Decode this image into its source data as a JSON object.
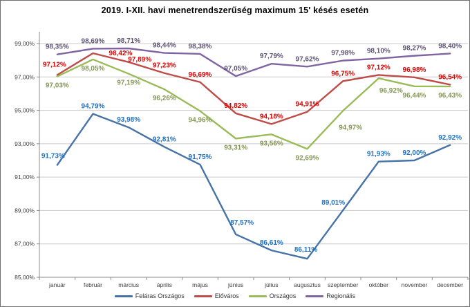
{
  "chart_data": {
    "type": "line",
    "title": "2019. I-XII. havi menetrendszerűség  maximum 15' késés esetén",
    "categories": [
      "január",
      "február",
      "március",
      "április",
      "május",
      "június",
      "július",
      "augusztus",
      "szeptember",
      "október",
      "november",
      "december"
    ],
    "series": [
      {
        "name": "Feláras Országos",
        "color": "#4572A7",
        "label_color": "#1F6FC0",
        "values": [
          91.73,
          94.79,
          93.98,
          92.81,
          91.75,
          87.57,
          86.61,
          86.11,
          89.01,
          91.93,
          92.0,
          92.92
        ],
        "label_dy": -8,
        "label_overrides": {
          "0": [
            -6,
            -10
          ],
          "5": [
            9,
            -14
          ],
          "7": [
            -2,
            -10
          ],
          "8": [
            -14,
            -8
          ]
        }
      },
      {
        "name": "Előváros",
        "color": "#BE4B48",
        "label_color": "#E00000",
        "values": [
          97.12,
          98.42,
          97.89,
          97.23,
          96.69,
          94.82,
          94.18,
          94.91,
          96.75,
          97.12,
          96.98,
          96.54
        ],
        "label_dy": -8,
        "label_overrides": {
          "0": [
            -4,
            -12
          ],
          "1": [
            40,
            3
          ],
          "2": [
            16,
            -1
          ]
        }
      },
      {
        "name": "Országos",
        "color": "#9BBB59",
        "label_color": "#839655",
        "values": [
          97.03,
          98.05,
          97.19,
          96.26,
          94.96,
          93.31,
          93.56,
          92.69,
          94.97,
          96.92,
          96.44,
          96.43
        ],
        "label_dy": 16,
        "label_overrides": {
          "8": [
            11,
            27
          ],
          "9": [
            18,
            21
          ]
        }
      },
      {
        "name": "Regionális",
        "color": "#8064A2",
        "label_color": "#5D5372",
        "values": [
          98.35,
          98.69,
          98.71,
          98.44,
          98.38,
          97.05,
          97.79,
          97.62,
          97.98,
          98.1,
          98.27,
          98.4
        ],
        "label_dy": -8,
        "label_overrides": {}
      }
    ],
    "y_axis": {
      "min": 85,
      "max": 99,
      "step": 2,
      "tick_format": "percent-comma-2"
    },
    "xlabel": "",
    "ylabel": "",
    "grid": true,
    "legend_position": "bottom"
  }
}
